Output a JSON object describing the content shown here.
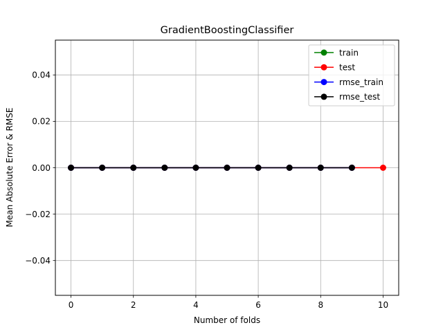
{
  "chart_data": {
    "type": "line",
    "title": "GradientBoostingClassifier",
    "xlabel": "Number of folds",
    "ylabel": "Mean Absolute Error & RMSE",
    "xlim": [
      -0.5,
      10.5
    ],
    "ylim": [
      -0.055,
      0.055
    ],
    "xticks": [
      0,
      2,
      4,
      6,
      8,
      10
    ],
    "xtick_labels": [
      "0",
      "2",
      "4",
      "6",
      "8",
      "10"
    ],
    "yticks": [
      -0.04,
      -0.02,
      0.0,
      0.02,
      0.04
    ],
    "ytick_labels": [
      "−0.04",
      "−0.02",
      "0.00",
      "0.02",
      "0.04"
    ],
    "grid": true,
    "legend_position": "top-right",
    "series": [
      {
        "name": "train",
        "color": "#008000",
        "x": [
          0,
          1,
          2,
          3,
          4,
          5,
          6,
          7,
          8,
          9
        ],
        "y": [
          0,
          0,
          0,
          0,
          0,
          0,
          0,
          0,
          0,
          0
        ]
      },
      {
        "name": "test",
        "color": "#ff0000",
        "x": [
          0,
          1,
          2,
          3,
          4,
          5,
          6,
          7,
          8,
          9,
          10
        ],
        "y": [
          0,
          0,
          0,
          0,
          0,
          0,
          0,
          0,
          0,
          0,
          0
        ]
      },
      {
        "name": "rmse_train",
        "color": "#0000ff",
        "x": [
          0,
          1,
          2,
          3,
          4,
          5,
          6,
          7,
          8,
          9
        ],
        "y": [
          0,
          0,
          0,
          0,
          0,
          0,
          0,
          0,
          0,
          0
        ]
      },
      {
        "name": "rmse_test",
        "color": "#000000",
        "x": [
          0,
          1,
          2,
          3,
          4,
          5,
          6,
          7,
          8,
          9
        ],
        "y": [
          0,
          0,
          0,
          0,
          0,
          0,
          0,
          0,
          0,
          0
        ]
      }
    ]
  }
}
